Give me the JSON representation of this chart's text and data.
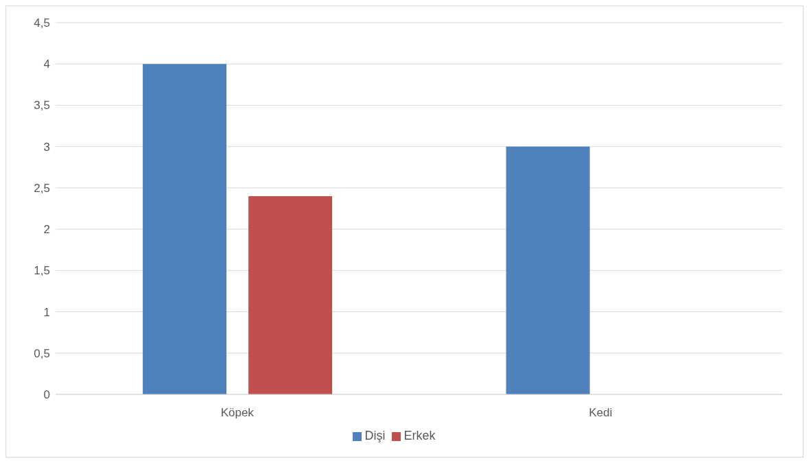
{
  "chart_data": {
    "type": "bar",
    "categories": [
      "Köpek",
      "Kedi"
    ],
    "series": [
      {
        "name": "Dişi",
        "color": "#4f81bd",
        "values": [
          4,
          3
        ]
      },
      {
        "name": "Erkek",
        "color": "#c0504d",
        "values": [
          2.4,
          null
        ]
      }
    ],
    "ylim": [
      0,
      4.5
    ],
    "yticks": [
      0,
      {
        "value": 0.5,
        "label": "0,5"
      },
      1,
      {
        "value": 1.5,
        "label": "1,5"
      },
      2,
      {
        "value": 2.5,
        "label": "2,5"
      },
      3,
      {
        "value": 3.5,
        "label": "3,5"
      },
      4,
      {
        "value": 4.5,
        "label": "4,5"
      }
    ],
    "grid": "y",
    "legend": "bottom"
  }
}
